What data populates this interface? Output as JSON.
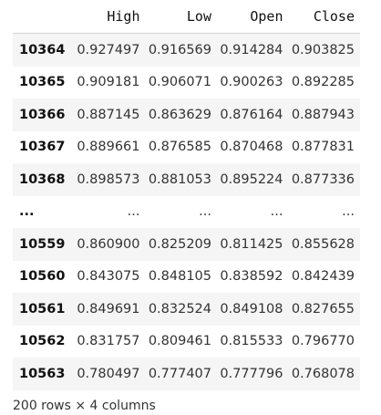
{
  "table": {
    "columns": [
      "High",
      "Low",
      "Open",
      "Close"
    ],
    "rows": [
      {
        "index": "10364",
        "values": [
          "0.927497",
          "0.916569",
          "0.914284",
          "0.903825"
        ]
      },
      {
        "index": "10365",
        "values": [
          "0.909181",
          "0.906071",
          "0.900263",
          "0.892285"
        ]
      },
      {
        "index": "10366",
        "values": [
          "0.887145",
          "0.863629",
          "0.876164",
          "0.887943"
        ]
      },
      {
        "index": "10367",
        "values": [
          "0.889661",
          "0.876585",
          "0.870468",
          "0.877831"
        ]
      },
      {
        "index": "10368",
        "values": [
          "0.898573",
          "0.881053",
          "0.895224",
          "0.877336"
        ]
      },
      {
        "index": "...",
        "values": [
          "...",
          "...",
          "...",
          "..."
        ]
      },
      {
        "index": "10559",
        "values": [
          "0.860900",
          "0.825209",
          "0.811425",
          "0.855628"
        ]
      },
      {
        "index": "10560",
        "values": [
          "0.843075",
          "0.848105",
          "0.838592",
          "0.842439"
        ]
      },
      {
        "index": "10561",
        "values": [
          "0.849691",
          "0.832524",
          "0.849108",
          "0.827655"
        ]
      },
      {
        "index": "10562",
        "values": [
          "0.831757",
          "0.809461",
          "0.815533",
          "0.796770"
        ]
      },
      {
        "index": "10563",
        "values": [
          "0.780497",
          "0.777407",
          "0.777796",
          "0.768078"
        ]
      }
    ]
  },
  "footer": {
    "shape_text": "200 rows × 4 columns"
  }
}
